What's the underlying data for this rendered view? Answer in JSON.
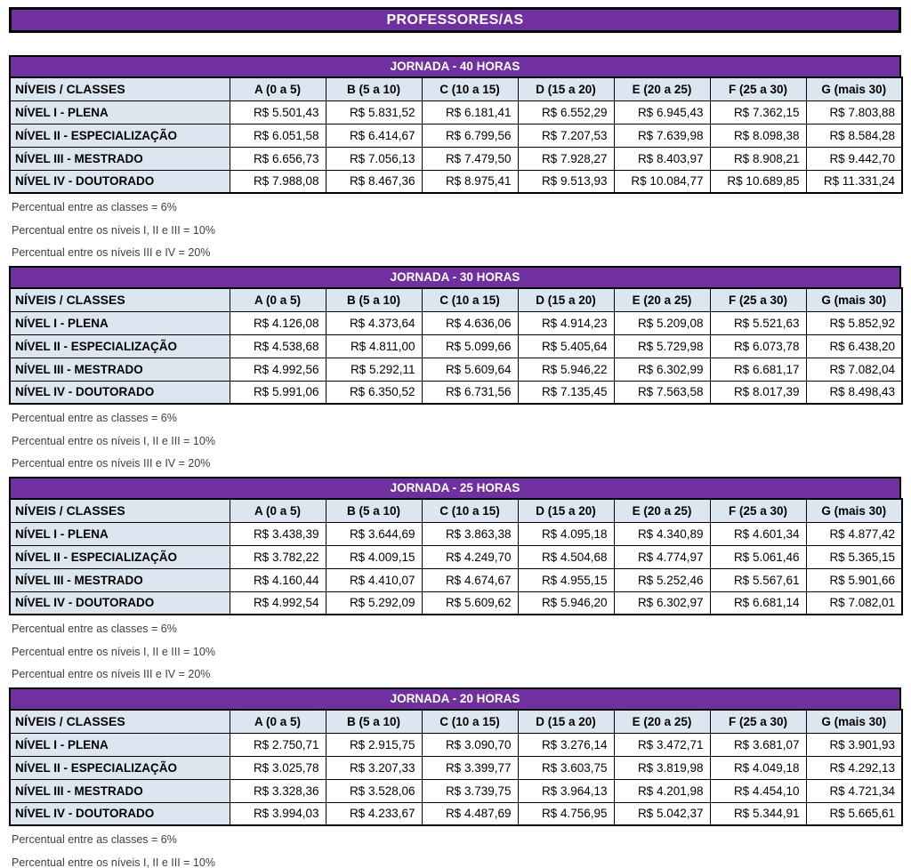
{
  "title": "PROFESSORES/AS",
  "colors": {
    "purple": "#7030A0",
    "header_blue": "#DCE6F1",
    "border": "#000000",
    "note_text": "#3F3F3F"
  },
  "columns": [
    "NÍVEIS / CLASSES",
    "A (0 a 5)",
    "B (5 a 10)",
    "C (10 a 15)",
    "D (15 a 20)",
    "E (20 a 25)",
    "F (25 a 30)",
    "G (mais 30)"
  ],
  "tables": [
    {
      "title": "JORNADA - 40 HORAS",
      "rows": [
        {
          "label": "NÍVEL I - PLENA",
          "values": [
            "R$ 5.501,43",
            "R$ 5.831,52",
            "R$ 6.181,41",
            "R$ 6.552,29",
            "R$ 6.945,43",
            "R$ 7.362,15",
            "R$ 7.803,88"
          ]
        },
        {
          "label": "NÍVEL II - ESPECIALIZAÇÃO",
          "values": [
            "R$ 6.051,58",
            "R$ 6.414,67",
            "R$ 6.799,56",
            "R$ 7.207,53",
            "R$ 7.639,98",
            "R$ 8.098,38",
            "R$ 8.584,28"
          ]
        },
        {
          "label": "NÍVEL III - MESTRADO",
          "values": [
            "R$ 6.656,73",
            "R$ 7.056,13",
            "R$ 7.479,50",
            "R$ 7.928,27",
            "R$ 8.403,97",
            "R$ 8.908,21",
            "R$ 9.442,70"
          ]
        },
        {
          "label": "NÍVEL IV - DOUTORADO",
          "values": [
            "R$ 7.988,08",
            "R$ 8.467,36",
            "R$ 8.975,41",
            "R$ 9.513,93",
            "R$ 10.084,77",
            "R$ 10.689,85",
            "R$ 11.331,24"
          ]
        }
      ],
      "notes": [
        "Percentual entre as classes = 6%",
        "Percentual entre os níveis I, II e III = 10%",
        "Percentual entre os níveis III e IV = 20%"
      ]
    },
    {
      "title": "JORNADA - 30 HORAS",
      "rows": [
        {
          "label": "NÍVEL I - PLENA",
          "values": [
            "R$ 4.126,08",
            "R$ 4.373,64",
            "R$ 4.636,06",
            "R$ 4.914,23",
            "R$ 5.209,08",
            "R$ 5.521,63",
            "R$ 5.852,92"
          ]
        },
        {
          "label": "NÍVEL II - ESPECIALIZAÇÃO",
          "values": [
            "R$ 4.538,68",
            "R$ 4.811,00",
            "R$ 5.099,66",
            "R$ 5.405,64",
            "R$ 5.729,98",
            "R$ 6.073,78",
            "R$ 6.438,20"
          ]
        },
        {
          "label": "NÍVEL III - MESTRADO",
          "values": [
            "R$ 4.992,56",
            "R$ 5.292,11",
            "R$ 5.609,64",
            "R$ 5.946,22",
            "R$ 6.302,99",
            "R$ 6.681,17",
            "R$ 7.082,04"
          ]
        },
        {
          "label": "NÍVEL IV - DOUTORADO",
          "values": [
            "R$ 5.991,06",
            "R$ 6.350,52",
            "R$ 6.731,56",
            "R$ 7.135,45",
            "R$ 7.563,58",
            "R$ 8.017,39",
            "R$ 8.498,43"
          ]
        }
      ],
      "notes": [
        "Percentual entre as classes = 6%",
        "Percentual entre os níveis I, II e III = 10%",
        "Percentual entre os níveis III e IV = 20%"
      ]
    },
    {
      "title": "JORNADA - 25 HORAS",
      "rows": [
        {
          "label": "NÍVEL I - PLENA",
          "values": [
            "R$ 3.438,39",
            "R$ 3.644,69",
            "R$ 3.863,38",
            "R$ 4.095,18",
            "R$ 4.340,89",
            "R$ 4.601,34",
            "R$ 4.877,42"
          ]
        },
        {
          "label": "NÍVEL II - ESPECIALIZAÇÃO",
          "values": [
            "R$ 3.782,22",
            "R$ 4.009,15",
            "R$ 4.249,70",
            "R$ 4.504,68",
            "R$ 4.774,97",
            "R$ 5.061,46",
            "R$ 5.365,15"
          ]
        },
        {
          "label": "NÍVEL III - MESTRADO",
          "values": [
            "R$ 4.160,44",
            "R$ 4.410,07",
            "R$ 4.674,67",
            "R$ 4.955,15",
            "R$ 5.252,46",
            "R$ 5.567,61",
            "R$ 5.901,66"
          ]
        },
        {
          "label": "NÍVEL IV - DOUTORADO",
          "values": [
            "R$ 4.992,54",
            "R$ 5.292,09",
            "R$ 5.609,62",
            "R$ 5.946,20",
            "R$ 6.302,97",
            "R$ 6.681,14",
            "R$ 7.082,01"
          ]
        }
      ],
      "notes": [
        "Percentual entre as classes = 6%",
        "Percentual entre os níveis I, II e III = 10%",
        "Percentual entre os níveis III e IV = 20%"
      ]
    },
    {
      "title": "JORNADA - 20 HORAS",
      "rows": [
        {
          "label": "NÍVEL I - PLENA",
          "values": [
            "R$ 2.750,71",
            "R$ 2.915,75",
            "R$ 3.090,70",
            "R$ 3.276,14",
            "R$ 3.472,71",
            "R$ 3.681,07",
            "R$ 3.901,93"
          ]
        },
        {
          "label": "NÍVEL II - ESPECIALIZAÇÃO",
          "values": [
            "R$ 3.025,78",
            "R$ 3.207,33",
            "R$ 3.399,77",
            "R$ 3.603,75",
            "R$ 3.819,98",
            "R$ 4.049,18",
            "R$ 4.292,13"
          ]
        },
        {
          "label": "NÍVEL III - MESTRADO",
          "values": [
            "R$ 3.328,36",
            "R$ 3.528,06",
            "R$ 3.739,75",
            "R$ 3.964,13",
            "R$ 4.201,98",
            "R$ 4.454,10",
            "R$ 4.721,34"
          ]
        },
        {
          "label": "NÍVEL IV - DOUTORADO",
          "values": [
            "R$ 3.994,03",
            "R$ 4.233,67",
            "R$ 4.487,69",
            "R$ 4.756,95",
            "R$ 5.042,37",
            "R$ 5.344,91",
            "R$ 5.665,61"
          ]
        }
      ],
      "notes": [
        "Percentual entre as classes = 6%",
        "Percentual entre os níveis I, II e III = 10%"
      ]
    }
  ]
}
